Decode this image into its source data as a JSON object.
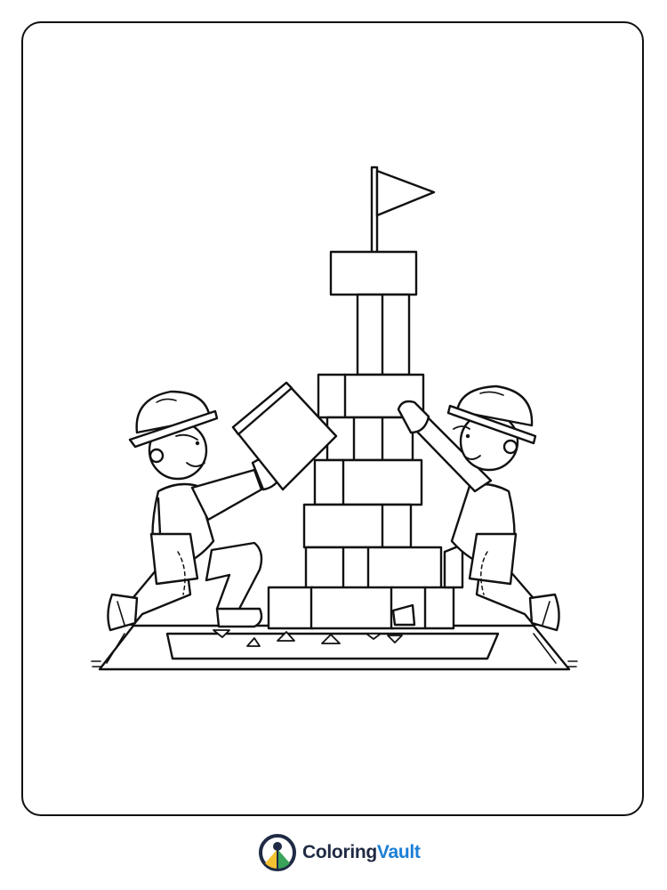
{
  "brand": {
    "name_part1": "Coloring",
    "name_part2": "Vault",
    "logo_icon": "coloringvault-logo-icon",
    "colors": {
      "dark": "#1f2a44",
      "blue": "#1a7fd6",
      "yellow": "#f2c230",
      "green": "#3aa45a"
    }
  },
  "artwork": {
    "icons": [
      "flag-icon",
      "hard-hat-icon",
      "block-tower-icon",
      "rug-icon"
    ]
  }
}
